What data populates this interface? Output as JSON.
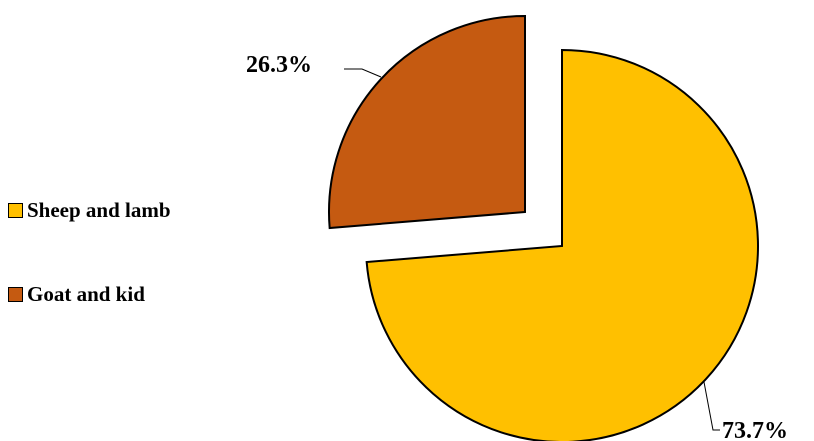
{
  "chart_data": {
    "type": "pie",
    "categories": [
      "Sheep and lamb",
      "Goat and kid"
    ],
    "values": [
      73.7,
      26.3
    ],
    "unit": "%",
    "data_labels": [
      "73.7%",
      "26.3%"
    ],
    "colors": [
      "#FFC000",
      "#C55A11"
    ],
    "legend_position": "left",
    "exploded": true
  },
  "legend": [
    {
      "label": "Sheep and lamb",
      "color": "#FFC000"
    },
    {
      "label": "Goat and kid",
      "color": "#C55A11"
    }
  ]
}
